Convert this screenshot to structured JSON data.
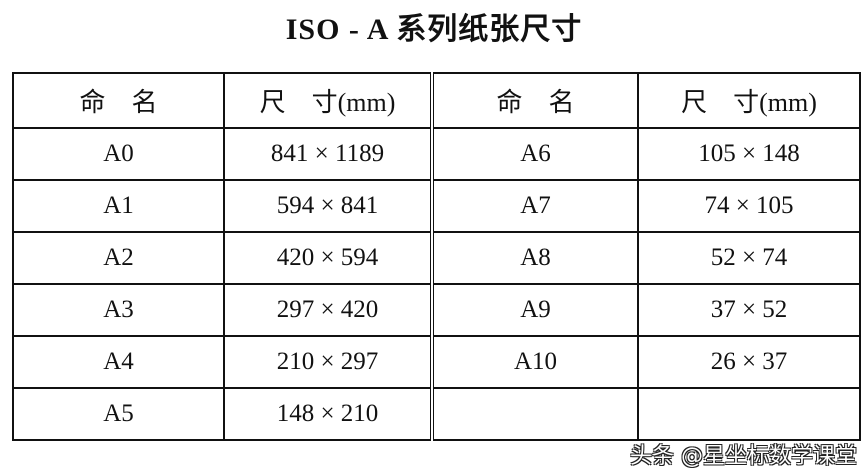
{
  "title": "ISO - A 系列纸张尺寸",
  "headers": [
    "命　名",
    "尺　寸(mm)",
    "命　名",
    "尺　寸(mm)"
  ],
  "rows": [
    [
      "A0",
      "841 × 1189",
      "A6",
      "105 × 148"
    ],
    [
      "A1",
      "594 × 841",
      "A7",
      "74 × 105"
    ],
    [
      "A2",
      "420 × 594",
      "A8",
      "52 × 74"
    ],
    [
      "A3",
      "297 × 420",
      "A9",
      "37 × 52"
    ],
    [
      "A4",
      "210 × 297",
      "A10",
      "26 × 37"
    ],
    [
      "A5",
      "148 × 210",
      "",
      ""
    ]
  ],
  "watermark": "头条 @星坐标数学课堂"
}
